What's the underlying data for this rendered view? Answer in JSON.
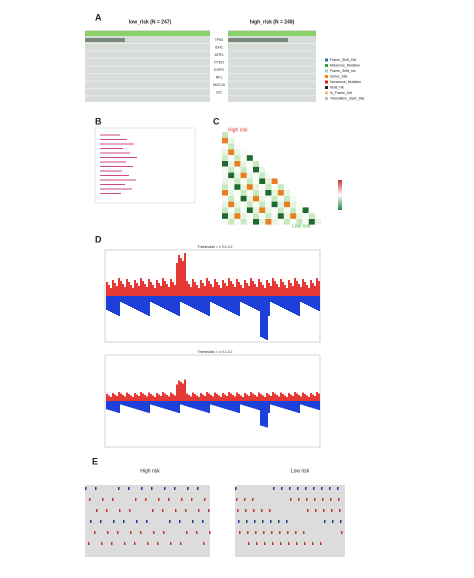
{
  "panels": {
    "A": {
      "label": "A",
      "left_title": "low_risk (N = 247)",
      "right_title": "high_risk (N = 248)",
      "genes": [
        "TP53",
        "IDH1",
        "ATRX",
        "PTEN",
        "EGFR",
        "NF1",
        "MUC16",
        "CIC"
      ],
      "legend": [
        "Frame_Shift_Del",
        "Missense_Mutation",
        "Frame_Shift_Ins",
        "Splice_Site",
        "Nonsense_Mutation",
        "Multi_Hit",
        "In_Frame_Del",
        "Translation_Start_Site"
      ]
    },
    "B": {
      "label": "B"
    },
    "C": {
      "label": "C",
      "high": "High risk",
      "low": "Low risk"
    },
    "D": {
      "label": "D",
      "top_title": "Thresholds = ± 0.1,0.2",
      "bottom_title": "Thresholds = ± 0.1,0.2"
    },
    "E": {
      "label": "E",
      "left_title": "High risk",
      "right_title": "Low risk"
    }
  }
}
